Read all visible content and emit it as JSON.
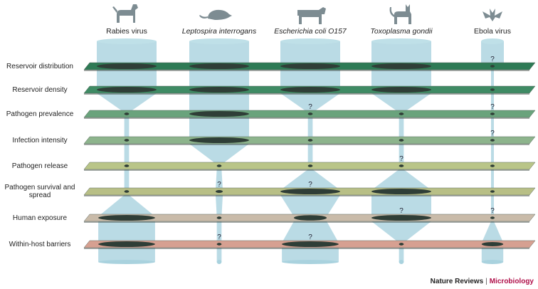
{
  "pathogens": [
    {
      "label": "Rabies virus",
      "italic": false,
      "icon": "dog-icon"
    },
    {
      "label": "Leptospira interrogans",
      "italic": true,
      "icon": "rat-icon"
    },
    {
      "label": "Escherichia coli O157",
      "italic": true,
      "icon": "cow-icon"
    },
    {
      "label": "Toxoplasma gondii",
      "italic": true,
      "icon": "cat-icon"
    },
    {
      "label": "Ebola virus",
      "italic": false,
      "icon": "bat-icon"
    }
  ],
  "layers": [
    {
      "label": "Reservoir distribution",
      "color": "#2e7a55"
    },
    {
      "label": "Reservoir density",
      "color": "#3f8b64"
    },
    {
      "label": "Pathogen prevalence",
      "color": "#6aa37c"
    },
    {
      "label": "Infection intensity",
      "color": "#8db48c"
    },
    {
      "label": "Pathogen release",
      "color": "#b9c588"
    },
    {
      "label": "Pathogen survival and spread",
      "color": "#b8bf86"
    },
    {
      "label": "Human exposure",
      "color": "#c9bba9"
    },
    {
      "label": "Within-host barriers",
      "color": "#d6a091"
    }
  ],
  "flows": [
    [
      1.0,
      1.0,
      0.08,
      0.08,
      0.08,
      0.08,
      0.95,
      0.95
    ],
    [
      1.0,
      1.0,
      1.0,
      1.0,
      0.08,
      0.12,
      0.08,
      0.08
    ],
    [
      1.0,
      1.0,
      0.08,
      0.08,
      0.08,
      1.0,
      0.55,
      0.95
    ],
    [
      1.0,
      1.0,
      0.08,
      0.08,
      0.08,
      1.0,
      1.0,
      0.08
    ],
    [
      0.08,
      0.08,
      0.08,
      0.08,
      0.08,
      0.08,
      0.08,
      0.95
    ]
  ],
  "uncertain": [
    [
      false,
      false,
      false,
      false,
      false,
      false,
      false,
      false
    ],
    [
      false,
      false,
      false,
      false,
      false,
      true,
      false,
      true
    ],
    [
      false,
      false,
      true,
      false,
      false,
      true,
      false,
      true
    ],
    [
      false,
      false,
      false,
      false,
      true,
      false,
      true,
      false
    ],
    [
      true,
      false,
      true,
      true,
      false,
      false,
      true,
      false
    ]
  ],
  "question_mark": "?",
  "credit": {
    "journal": "Nature Reviews",
    "separator": "|",
    "subject": "Microbiology"
  }
}
